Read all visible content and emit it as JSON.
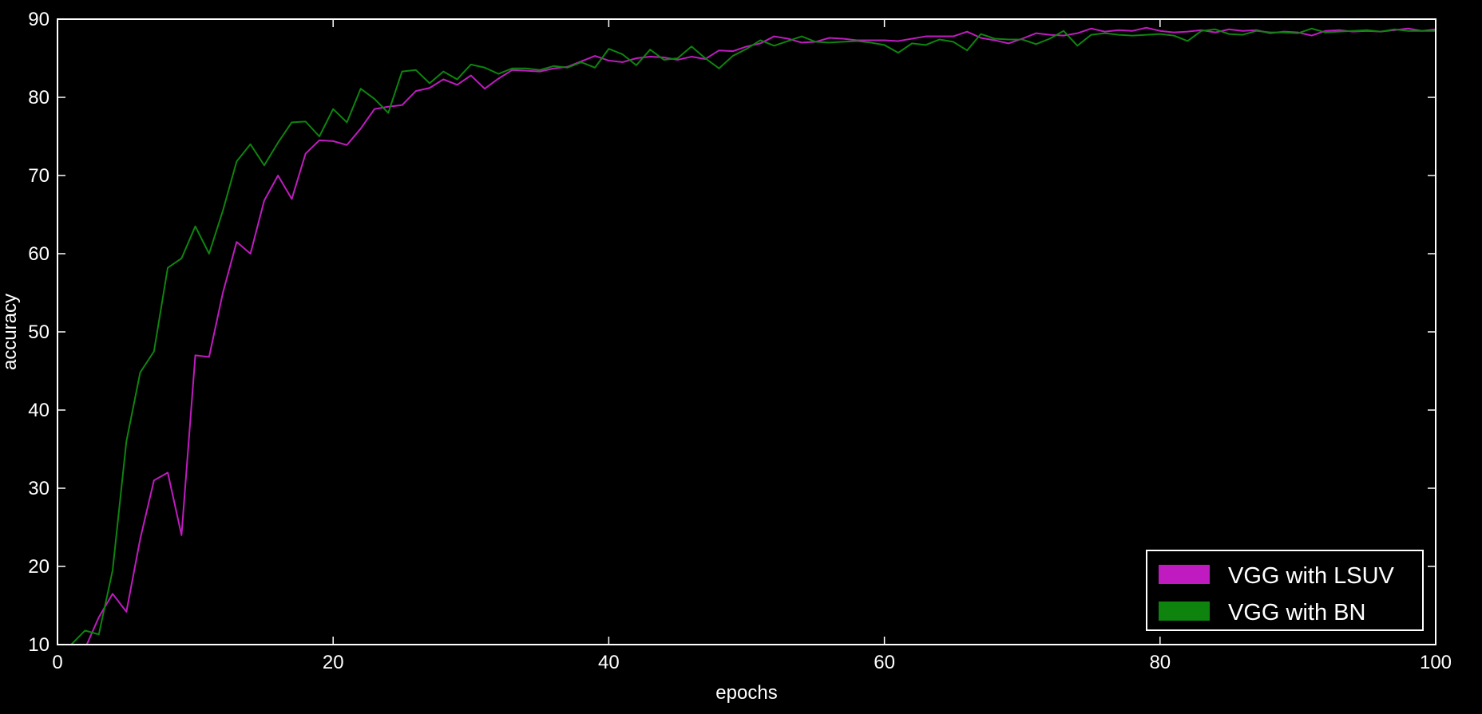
{
  "chart_data": {
    "type": "line",
    "title": "",
    "xlabel": "epochs",
    "ylabel": "accuracy",
    "xlim": [
      0,
      100
    ],
    "ylim": [
      10,
      90
    ],
    "xticks": [
      0,
      20,
      40,
      60,
      80,
      100
    ],
    "yticks": [
      10,
      20,
      30,
      40,
      50,
      60,
      70,
      80,
      90
    ],
    "grid": false,
    "legend_position": "bottom-right",
    "background": "#000000",
    "axis_color": "#ffffff",
    "x": [
      1,
      2,
      3,
      4,
      5,
      6,
      7,
      8,
      9,
      10,
      11,
      12,
      13,
      14,
      15,
      16,
      17,
      18,
      19,
      20,
      21,
      22,
      23,
      24,
      25,
      26,
      27,
      28,
      29,
      30,
      31,
      32,
      33,
      34,
      35,
      36,
      37,
      38,
      39,
      40,
      41,
      42,
      43,
      44,
      45,
      46,
      47,
      48,
      49,
      50,
      51,
      52,
      53,
      54,
      55,
      56,
      57,
      58,
      59,
      60,
      61,
      62,
      63,
      64,
      65,
      66,
      67,
      68,
      69,
      70,
      71,
      72,
      73,
      74,
      75,
      76,
      77,
      78,
      79,
      80,
      81,
      82,
      83,
      84,
      85,
      86,
      87,
      88,
      89,
      90,
      91,
      92,
      93,
      94,
      95,
      96,
      97,
      98,
      99,
      100
    ],
    "series": [
      {
        "name": "VGG with LSUV",
        "color": "#c01bc0",
        "values": [
          7.5,
          9.5,
          13.5,
          16.5,
          14.2,
          23.5,
          31.0,
          32.0,
          24.0,
          47.0,
          46.8,
          55.0,
          61.5,
          60.0,
          66.8,
          70.0,
          67.0,
          72.8,
          74.5,
          74.4,
          73.9,
          76.0,
          78.5,
          78.8,
          79.0,
          80.8,
          81.2,
          82.3,
          81.6,
          82.8,
          81.1,
          82.4,
          83.5,
          83.4,
          83.3,
          83.7,
          83.9,
          84.6,
          85.3,
          84.7,
          84.5,
          85.0,
          85.2,
          85.1,
          84.8,
          85.2,
          84.9,
          86.0,
          85.9,
          86.5,
          86.9,
          87.8,
          87.5,
          87.0,
          87.1,
          87.6,
          87.5,
          87.3,
          87.3,
          87.3,
          87.2,
          87.5,
          87.8,
          87.8,
          87.8,
          88.4,
          87.6,
          87.3,
          86.9,
          87.5,
          88.2,
          88.0,
          87.9,
          88.2,
          88.8,
          88.4,
          88.6,
          88.5,
          88.9,
          88.5,
          88.3,
          88.4,
          88.6,
          88.3,
          88.7,
          88.5,
          88.6,
          88.2,
          88.4,
          88.3,
          87.9,
          88.5,
          88.6,
          88.4,
          88.5,
          88.4,
          88.6,
          88.8,
          88.5,
          88.7
        ]
      },
      {
        "name": "VGG with BN",
        "color": "#0e840e",
        "values": [
          10.0,
          11.8,
          11.3,
          19.5,
          36.0,
          44.8,
          47.5,
          58.2,
          59.4,
          63.5,
          60.0,
          65.5,
          71.8,
          74.0,
          71.3,
          74.2,
          76.8,
          76.9,
          75.0,
          78.5,
          76.8,
          81.1,
          79.8,
          78.0,
          83.3,
          83.5,
          81.8,
          83.3,
          82.3,
          84.2,
          83.8,
          83.0,
          83.7,
          83.7,
          83.5,
          84.0,
          83.8,
          84.5,
          83.8,
          86.2,
          85.5,
          84.1,
          86.1,
          84.8,
          85.0,
          86.5,
          85.0,
          83.7,
          85.3,
          86.2,
          87.3,
          86.6,
          87.2,
          87.8,
          87.1,
          87.0,
          87.1,
          87.2,
          87.0,
          86.7,
          85.7,
          86.9,
          86.7,
          87.4,
          87.1,
          86.0,
          88.1,
          87.5,
          87.4,
          87.4,
          86.8,
          87.5,
          88.5,
          86.6,
          88.0,
          88.2,
          88.0,
          87.9,
          88.0,
          88.1,
          87.9,
          87.2,
          88.5,
          88.7,
          88.1,
          88.0,
          88.5,
          88.3,
          88.3,
          88.2,
          88.8,
          88.3,
          88.4,
          88.5,
          88.6,
          88.4,
          88.7,
          88.5,
          88.5,
          88.5
        ]
      }
    ]
  }
}
